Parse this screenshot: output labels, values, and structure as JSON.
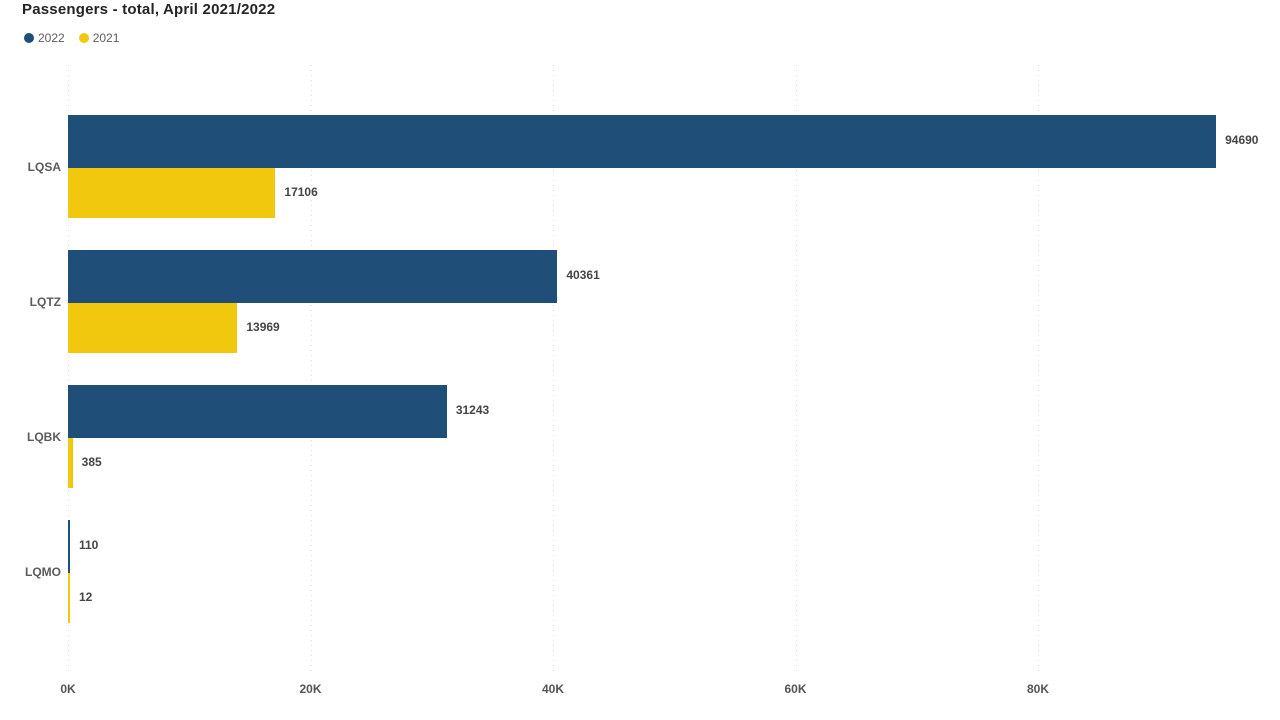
{
  "title": "Passengers - total, April 2021/2022",
  "legend": {
    "items": [
      {
        "label": "2022",
        "color": "#1F4E79"
      },
      {
        "label": "2021",
        "color": "#F2C80F"
      }
    ]
  },
  "colors": {
    "series_2022": "#1F4E79",
    "series_2021": "#F2C80F",
    "title_text": "#252423",
    "legend_text": "#605E5C",
    "axis_text": "#555353",
    "data_label_text": "#454545",
    "gridline": "#DCDCDC",
    "background": "#FFFFFF"
  },
  "chart_data": {
    "type": "bar",
    "orientation": "horizontal",
    "title": "Passengers - total, April 2021/2022",
    "categories": [
      "LQSA",
      "LQTZ",
      "LQBK",
      "LQMO"
    ],
    "series": [
      {
        "name": "2022",
        "color": "#1F4E79",
        "values": [
          94690,
          40361,
          31243,
          110
        ]
      },
      {
        "name": "2021",
        "color": "#F2C80F",
        "values": [
          17106,
          13969,
          385,
          12
        ]
      }
    ],
    "data_labels": [
      "94690",
      "17106",
      "40361",
      "13969",
      "31243",
      "385",
      "110",
      "12"
    ],
    "xlabel": "",
    "ylabel": "",
    "x_axis": {
      "ticks": [
        "0K",
        "20K",
        "40K",
        "60K",
        "80K"
      ],
      "tick_values": [
        0,
        20000,
        40000,
        60000,
        80000
      ],
      "range": [
        0,
        100000
      ],
      "gridlines": "dotted"
    },
    "legend_position": "top-left",
    "data_labels_on": true
  }
}
